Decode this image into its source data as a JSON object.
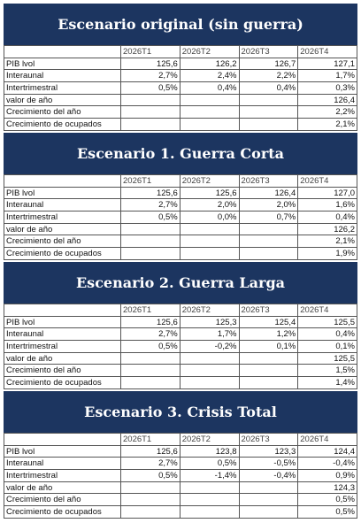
{
  "sections": [
    {
      "title": "Escenario original (sin guerra)",
      "header": [
        "2026T1",
        "2026T2",
        "2026T3",
        "2026T4"
      ],
      "rows": [
        {
          "label": "PIB lvol",
          "cells": [
            "125,6",
            "126,2",
            "126,7",
            "127,1"
          ]
        },
        {
          "label": "Interaunal",
          "cells": [
            "2,7%",
            "2,4%",
            "2,2%",
            "1,7%"
          ]
        },
        {
          "label": "Intertrimestral",
          "cells": [
            "0,5%",
            "0,4%",
            "0,4%",
            "0,3%"
          ]
        },
        {
          "label": "valor de año",
          "cells": [
            null,
            null,
            null,
            "126,4"
          ]
        },
        {
          "label": "Crecimiento del año",
          "cells": [
            null,
            null,
            null,
            "2,2%"
          ]
        },
        {
          "label": "Crecimiento de ocupados",
          "cells": [
            null,
            null,
            null,
            "2,1%"
          ]
        }
      ]
    },
    {
      "title": "Escenario 1. Guerra Corta",
      "header": [
        "2026T1",
        "2026T2",
        "2026T3",
        "2026T4"
      ],
      "rows": [
        {
          "label": "PIB lvol",
          "cells": [
            "125,6",
            "125,6",
            "126,4",
            "127,0"
          ]
        },
        {
          "label": "Interaunal",
          "cells": [
            "2,7%",
            "2,0%",
            "2,0%",
            "1,6%"
          ]
        },
        {
          "label": "Intertrimestral",
          "cells": [
            "0,5%",
            "0,0%",
            "0,7%",
            "0,4%"
          ]
        },
        {
          "label": "valor de año",
          "cells": [
            null,
            null,
            null,
            "126,2"
          ]
        },
        {
          "label": "Crecimiento del año",
          "cells": [
            null,
            null,
            null,
            "2,1%"
          ]
        },
        {
          "label": "Crecimiento de ocupados",
          "cells": [
            null,
            null,
            null,
            "1,9%"
          ]
        }
      ]
    },
    {
      "title": "Escenario 2. Guerra Larga",
      "header": [
        "2026T1",
        "2026T2",
        "2026T3",
        "2026T4"
      ],
      "rows": [
        {
          "label": "PIB lvol",
          "cells": [
            "125,6",
            "125,3",
            "125,4",
            "125,5"
          ]
        },
        {
          "label": "Interaunal",
          "cells": [
            "2,7%",
            "1,7%",
            "1,2%",
            "0,4%"
          ]
        },
        {
          "label": "Intertrimestral",
          "cells": [
            "0,5%",
            "-0,2%",
            "0,1%",
            "0,1%"
          ]
        },
        {
          "label": "valor de año",
          "cells": [
            null,
            null,
            null,
            "125,5"
          ]
        },
        {
          "label": "Crecimiento del año",
          "cells": [
            null,
            null,
            null,
            "1,5%"
          ]
        },
        {
          "label": "Crecimiento de ocupados",
          "cells": [
            null,
            null,
            null,
            "1,4%"
          ]
        }
      ]
    },
    {
      "title": "Escenario 3. Crisis Total",
      "header": [
        "2026T1",
        "2026T2",
        "2026T3",
        "2026T4"
      ],
      "rows": [
        {
          "label": "PIB lvol",
          "cells": [
            "125,6",
            "123,8",
            "123,3",
            "124,4"
          ]
        },
        {
          "label": "Interaunal",
          "cells": [
            "2,7%",
            "0,5%",
            "-0,5%",
            "-0,4%"
          ]
        },
        {
          "label": "Intertrimestral",
          "cells": [
            "0,5%",
            "-1,4%",
            "-0,4%",
            "0,9%"
          ]
        },
        {
          "label": "valor de año",
          "cells": [
            null,
            null,
            null,
            "124,3"
          ]
        },
        {
          "label": "Crecimiento del año",
          "cells": [
            null,
            null,
            null,
            "0,5%"
          ]
        },
        {
          "label": "Crecimiento de ocupados",
          "cells": [
            null,
            null,
            null,
            "0,5%"
          ]
        }
      ]
    }
  ]
}
